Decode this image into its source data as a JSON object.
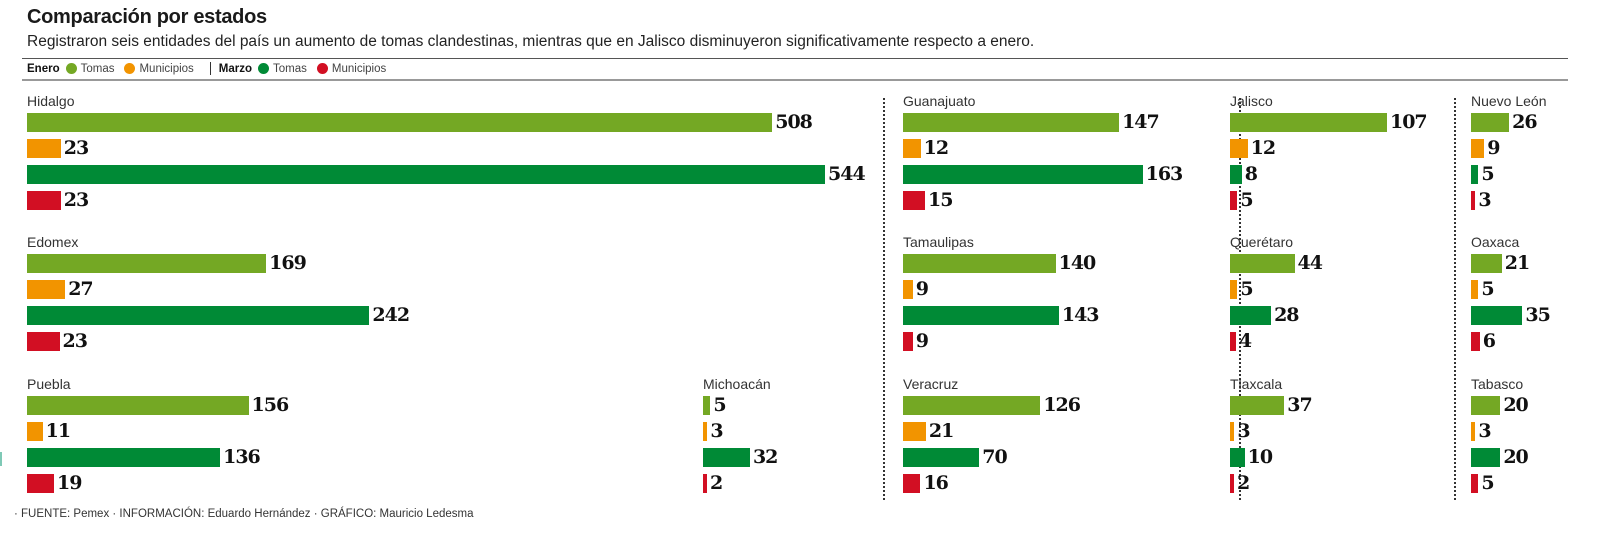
{
  "title": "Comparación por estados",
  "subtitle": "Registraron seis entidades del país un aumento de tomas clandestinas, mientras que en Jalisco disminuyeron significativamente respecto a enero.",
  "legend": {
    "group1": "Enero",
    "group2": "Marzo",
    "items": [
      {
        "label": "Tomas",
        "color": "#74a824"
      },
      {
        "label": "Municipios",
        "color": "#f29400"
      },
      {
        "label": "Tomas",
        "color": "#008a36"
      },
      {
        "label": "Municipios",
        "color": "#d20f23"
      }
    ]
  },
  "footer": "· FUENTE: Pemex · INFORMACIÓN: Eduardo Hernández · GRÁFICO: Mauricio Ledesma",
  "chart_data": {
    "type": "bar",
    "title": "Comparación por estados",
    "subtitle": "Registraron seis entidades del país un aumento de tomas clandestinas, mientras que en Jalisco disminuyeron significativamente respecto a enero.",
    "legend_position": "top-left",
    "series_names": [
      "Enero Tomas",
      "Enero Municipios",
      "Marzo Tomas",
      "Marzo Municipios"
    ],
    "colors": [
      "#74a824",
      "#f29400",
      "#008a36",
      "#d20f23"
    ],
    "states": [
      {
        "name": "Hidalgo",
        "values": [
          508,
          23,
          544,
          23
        ]
      },
      {
        "name": "Edomex",
        "values": [
          169,
          27,
          242,
          23
        ]
      },
      {
        "name": "Puebla",
        "values": [
          156,
          11,
          136,
          19
        ]
      },
      {
        "name": "Michoacán",
        "values": [
          5,
          3,
          32,
          2
        ]
      },
      {
        "name": "Guanajuato",
        "values": [
          147,
          12,
          163,
          15
        ]
      },
      {
        "name": "Tamaulipas",
        "values": [
          140,
          9,
          143,
          9
        ]
      },
      {
        "name": "Veracruz",
        "values": [
          126,
          21,
          70,
          16
        ]
      },
      {
        "name": "Jalisco",
        "values": [
          107,
          12,
          8,
          5
        ]
      },
      {
        "name": "Querétaro",
        "values": [
          44,
          5,
          28,
          4
        ]
      },
      {
        "name": "Tlaxcala",
        "values": [
          37,
          3,
          10,
          2
        ]
      },
      {
        "name": "Nuevo León",
        "values": [
          26,
          9,
          5,
          3
        ]
      },
      {
        "name": "Oaxaca",
        "values": [
          21,
          5,
          35,
          6
        ]
      },
      {
        "name": "Tabasco",
        "values": [
          20,
          3,
          20,
          5
        ]
      }
    ]
  }
}
